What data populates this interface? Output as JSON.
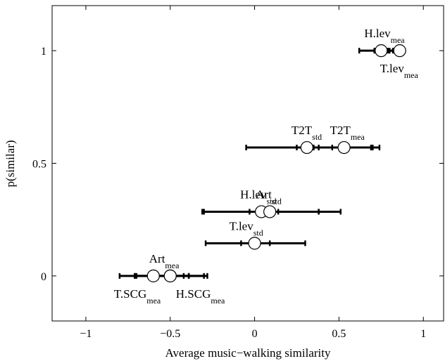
{
  "chart_data": {
    "type": "scatter",
    "title": "",
    "xlabel": "Average music−walking similarity",
    "ylabel": "p(similar)",
    "xlim": [
      -1.2,
      1.12
    ],
    "ylim": [
      -0.2,
      1.2
    ],
    "xticks": [
      -1,
      -0.5,
      0,
      0.5,
      1
    ],
    "xtick_labels": [
      "−1",
      "−0.5",
      "0",
      "0.5",
      "1"
    ],
    "yticks": [
      0,
      0.5,
      1
    ],
    "ytick_labels": [
      "0",
      "0.5",
      "1"
    ],
    "grid": false,
    "points": [
      {
        "main": "H.lev",
        "sub": "mea",
        "x": 0.75,
        "y": 1.0,
        "err_lo": 0.62,
        "err_hi": 0.88,
        "inner_lo": 0.71,
        "inner_hi": 0.8,
        "label_pos": "above"
      },
      {
        "main": "T.lev",
        "sub": "mea",
        "x": 0.86,
        "y": 1.0,
        "err_lo": 0.79,
        "err_hi": 0.89,
        "inner_lo": 0.82,
        "inner_hi": 0.88,
        "label_pos": "below"
      },
      {
        "main": "T2T",
        "sub": "std",
        "x": 0.31,
        "y": 0.57,
        "err_lo": -0.05,
        "err_hi": 0.7,
        "inner_lo": 0.25,
        "inner_hi": 0.38,
        "label_pos": "above"
      },
      {
        "main": "T2T",
        "sub": "mea",
        "x": 0.53,
        "y": 0.57,
        "err_lo": 0.35,
        "err_hi": 0.74,
        "inner_lo": 0.46,
        "inner_hi": 0.69,
        "label_pos": "above"
      },
      {
        "main": "H.lev",
        "sub": "std",
        "x": 0.04,
        "y": 0.285,
        "err_lo": -0.31,
        "err_hi": 0.38,
        "inner_lo": -0.03,
        "inner_hi": 0.14,
        "label_pos": "above"
      },
      {
        "main": "Art",
        "sub": "std",
        "x": 0.09,
        "y": 0.285,
        "err_lo": -0.3,
        "err_hi": 0.51,
        "inner_lo": 0.02,
        "inner_hi": 0.38,
        "label_pos": "above"
      },
      {
        "main": "T.lev",
        "sub": "std",
        "x": 0.0,
        "y": 0.145,
        "err_lo": -0.29,
        "err_hi": 0.3,
        "inner_lo": -0.08,
        "inner_hi": 0.09,
        "label_pos": "above"
      },
      {
        "main": "Art",
        "sub": "mea",
        "x": -0.5,
        "y": 0.0,
        "err_lo": -0.71,
        "err_hi": -0.28,
        "inner_lo": -0.57,
        "inner_hi": -0.39,
        "label_pos": "above"
      },
      {
        "main": "T.SCG",
        "sub": "mea",
        "x": -0.6,
        "y": 0.0,
        "err_lo": -0.8,
        "err_hi": -0.39,
        "inner_lo": -0.71,
        "inner_hi": -0.5,
        "label_pos": "below"
      },
      {
        "main": "H.SCG",
        "sub": "mea",
        "x": -0.5,
        "y": 0.0,
        "err_lo": -0.7,
        "err_hi": -0.3,
        "inner_lo": -0.58,
        "inner_hi": -0.42,
        "label_pos": "below"
      }
    ]
  }
}
